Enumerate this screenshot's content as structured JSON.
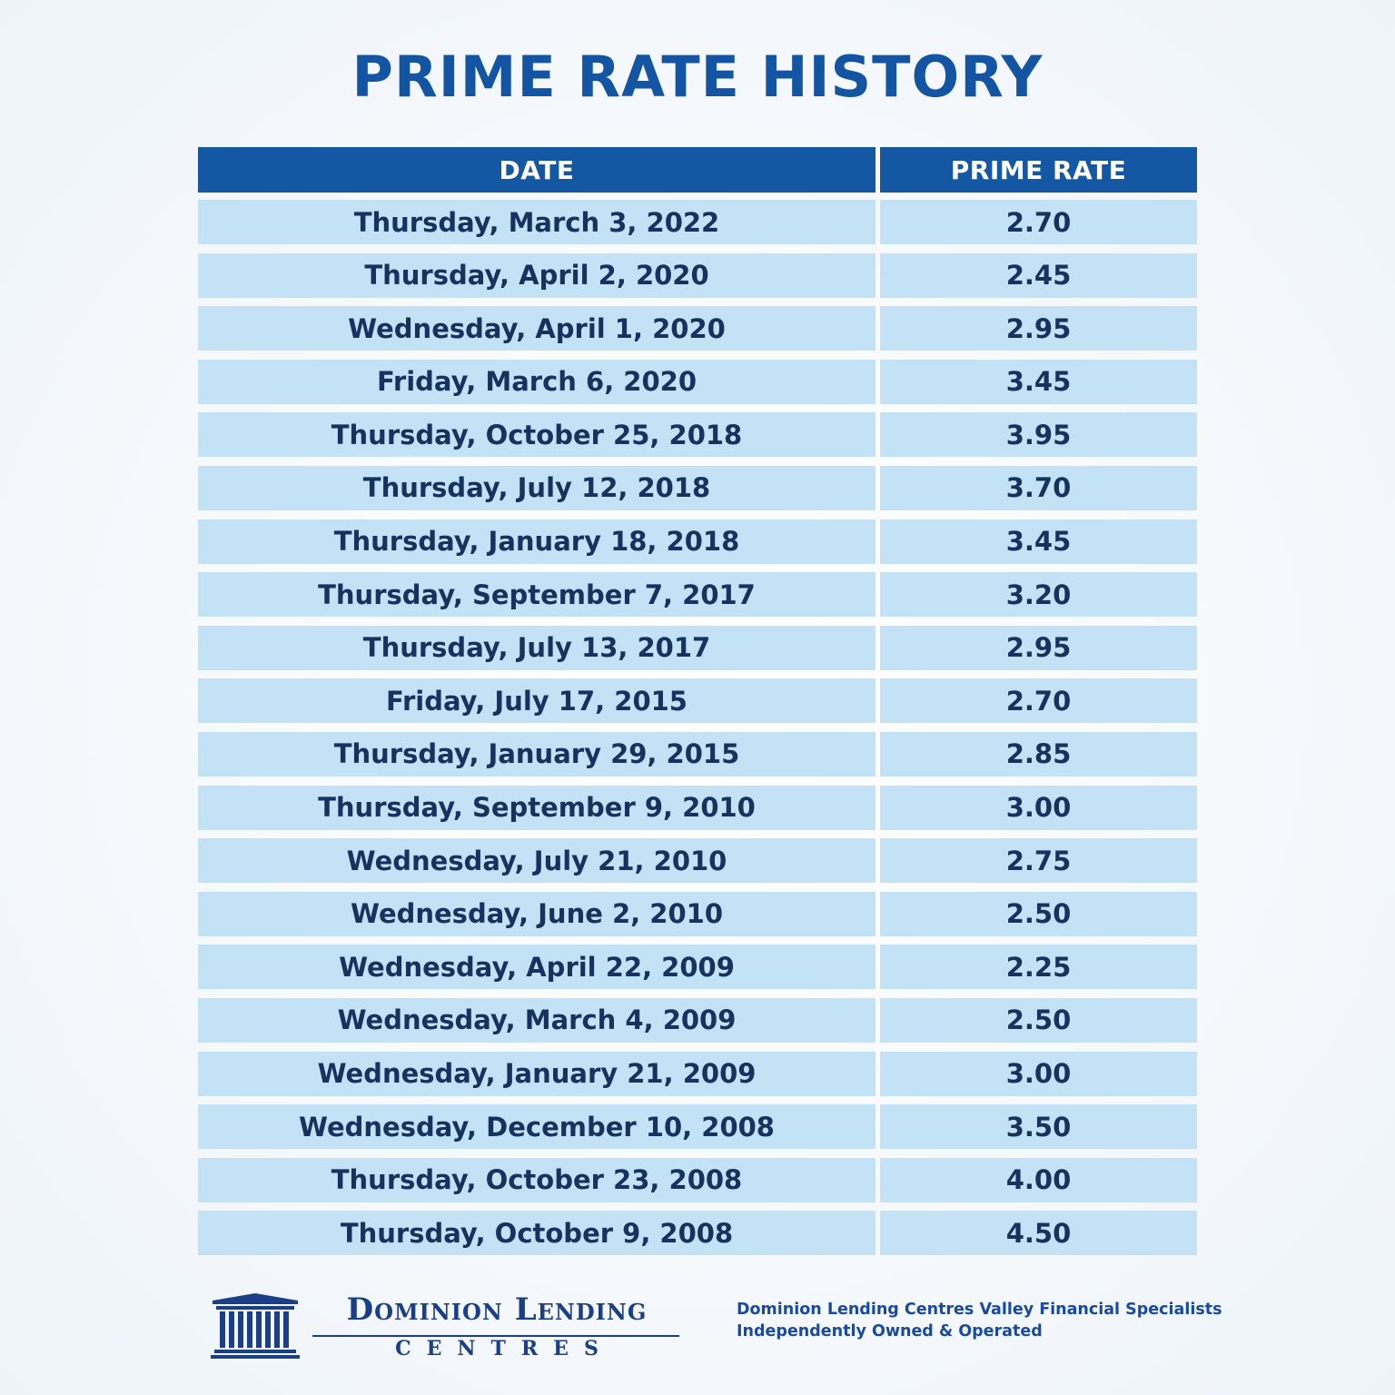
{
  "title": "PRIME RATE HISTORY",
  "table": {
    "headers": {
      "date": "DATE",
      "rate": "PRIME RATE"
    },
    "rows": [
      {
        "date": "Thursday, March 3, 2022",
        "rate": "2.70"
      },
      {
        "date": "Thursday, April 2, 2020",
        "rate": "2.45"
      },
      {
        "date": "Wednesday, April 1, 2020",
        "rate": "2.95"
      },
      {
        "date": "Friday, March 6, 2020",
        "rate": "3.45"
      },
      {
        "date": "Thursday, October 25, 2018",
        "rate": "3.95"
      },
      {
        "date": "Thursday, July 12, 2018",
        "rate": "3.70"
      },
      {
        "date": "Thursday, January 18, 2018",
        "rate": "3.45"
      },
      {
        "date": "Thursday, September 7, 2017",
        "rate": "3.20"
      },
      {
        "date": "Thursday, July 13, 2017",
        "rate": "2.95"
      },
      {
        "date": "Friday, July 17, 2015",
        "rate": "2.70"
      },
      {
        "date": "Thursday, January 29, 2015",
        "rate": "2.85"
      },
      {
        "date": "Thursday, September 9, 2010",
        "rate": "3.00"
      },
      {
        "date": "Wednesday, July 21, 2010",
        "rate": "2.75"
      },
      {
        "date": "Wednesday, June 2, 2010",
        "rate": "2.50"
      },
      {
        "date": "Wednesday, April 22, 2009",
        "rate": "2.25"
      },
      {
        "date": "Wednesday, March 4, 2009",
        "rate": "2.50"
      },
      {
        "date": "Wednesday, January 21, 2009",
        "rate": "3.00"
      },
      {
        "date": "Wednesday, December 10, 2008",
        "rate": "3.50"
      },
      {
        "date": "Thursday, October 23, 2008",
        "rate": "4.00"
      },
      {
        "date": "Thursday, October 9, 2008",
        "rate": "4.50"
      }
    ]
  },
  "footer": {
    "logo": {
      "icon": "pillars-building-icon",
      "name": "Dominion Lending",
      "sub": "CENTRES"
    },
    "tagline": {
      "line1": "Dominion Lending Centres Valley Financial Specialists",
      "line2": "Independently Owned & Operated"
    }
  },
  "colors": {
    "title": "#1355a3",
    "header_bg": "#1457a3",
    "row_bg": "#c3e2f5",
    "row_text": "#16325e",
    "logo": "#1a3f86"
  }
}
